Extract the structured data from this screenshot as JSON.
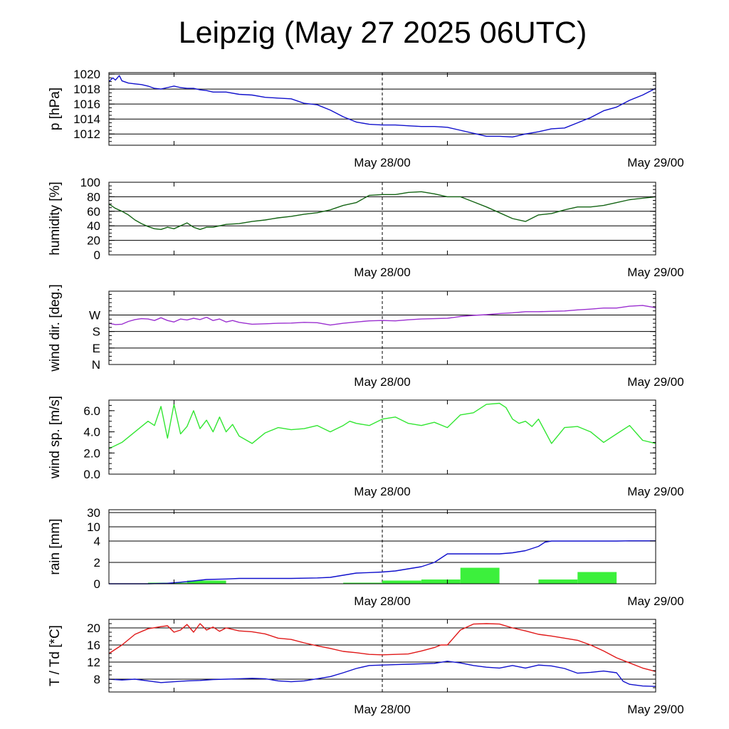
{
  "title": "Leipzig (May 27 2025 06UTC)",
  "colors": {
    "pressure": "#1010cc",
    "humidity": "#146414",
    "wind_dir": "#9b30d0",
    "wind_speed": "#32e632",
    "rain_line": "#1010cc",
    "rain_bars": "#3cf03c",
    "temperature": "#e01818",
    "dewpoint": "#1010cc",
    "frame": "#000000"
  },
  "chart_data": [
    {
      "id": "pressure",
      "type": "line",
      "ylabel": "p [hPa]",
      "ylim": [
        1010.5,
        1020.2
      ],
      "yticks": [
        1012,
        1014,
        1016,
        1018,
        1020
      ],
      "ytick_labels": [
        "1012",
        "1014",
        "1016",
        "1018",
        "1020"
      ],
      "grid": true,
      "xlim": [
        0,
        42
      ],
      "xtick_labels": [
        "May 28/00",
        "May 29/00"
      ],
      "series": [
        {
          "color_key": "pressure",
          "x": [
            0,
            0.3,
            0.5,
            0.8,
            1,
            1.5,
            2,
            2.5,
            3,
            3.5,
            4,
            4.5,
            5,
            5.5,
            6,
            6.5,
            7,
            7.5,
            8,
            9,
            10,
            11,
            12,
            13,
            14,
            15,
            16,
            17,
            18,
            19,
            20,
            21,
            22,
            23,
            24,
            25,
            26,
            27,
            28,
            29,
            30,
            31,
            32,
            33,
            34,
            35,
            36,
            37,
            38,
            39,
            40,
            41,
            42
          ],
          "y": [
            1019,
            1019.5,
            1019.2,
            1019.8,
            1019.1,
            1018.8,
            1018.7,
            1018.6,
            1018.4,
            1018.1,
            1018,
            1018.2,
            1018.4,
            1018.2,
            1018.1,
            1018.1,
            1017.9,
            1017.8,
            1017.6,
            1017.6,
            1017.3,
            1017.2,
            1016.9,
            1016.8,
            1016.7,
            1016.1,
            1015.9,
            1015.2,
            1014.3,
            1013.6,
            1013.3,
            1013.2,
            1013.2,
            1013.1,
            1013,
            1013,
            1012.9,
            1012.5,
            1012.1,
            1011.7,
            1011.7,
            1011.6,
            1012,
            1012.3,
            1012.7,
            1012.8,
            1013.5,
            1014.2,
            1015.1,
            1015.6,
            1016.5,
            1017.2,
            1018.1
          ]
        }
      ]
    },
    {
      "id": "humidity",
      "type": "line",
      "ylabel": "humidity [%]",
      "ylim": [
        0,
        100
      ],
      "yticks": [
        0,
        20,
        40,
        60,
        80,
        100
      ],
      "ytick_labels": [
        "0",
        "20",
        "40",
        "60",
        "80",
        "100"
      ],
      "grid": true,
      "xlim": [
        0,
        42
      ],
      "xtick_labels": [
        "May 28/00",
        "May 29/00"
      ],
      "series": [
        {
          "color_key": "humidity",
          "x": [
            0,
            0.5,
            1,
            1.5,
            2,
            2.5,
            3,
            3.5,
            4,
            4.5,
            5,
            5.5,
            6,
            6.5,
            7,
            7.5,
            8,
            9,
            10,
            11,
            12,
            13,
            14,
            15,
            16,
            17,
            18,
            19,
            20,
            21,
            22,
            23,
            24,
            25,
            26,
            27,
            28,
            29,
            30,
            31,
            32,
            33,
            34,
            35,
            36,
            37,
            38,
            39,
            40,
            41,
            42
          ],
          "y": [
            70,
            64,
            60,
            55,
            48,
            43,
            39,
            36,
            35,
            38,
            36,
            40,
            44,
            38,
            35,
            38,
            38,
            42,
            43,
            46,
            48,
            51,
            53,
            56,
            58,
            62,
            68,
            72,
            82,
            83,
            83,
            86,
            87,
            84,
            80,
            80,
            73,
            66,
            58,
            50,
            46,
            55,
            57,
            62,
            66,
            66,
            68,
            72,
            76,
            78,
            80
          ]
        }
      ]
    },
    {
      "id": "wind_dir",
      "type": "line",
      "ylabel": "wind dir. [deg.]",
      "ylim": [
        0,
        400
      ],
      "yticks": [
        0,
        90,
        180,
        270
      ],
      "ytick_labels": [
        "N",
        "E",
        "S",
        "W"
      ],
      "grid": true,
      "xlim": [
        0,
        42
      ],
      "xtick_labels": [
        "May 28/00",
        "May 29/00"
      ],
      "series": [
        {
          "color_key": "wind_dir",
          "x": [
            0,
            0.5,
            1,
            1.5,
            2,
            2.5,
            3,
            3.5,
            4,
            4.5,
            5,
            5.5,
            6,
            6.5,
            7,
            7.5,
            8,
            8.5,
            9,
            9.5,
            10,
            11,
            12,
            13,
            14,
            15,
            16,
            17,
            18,
            19,
            20,
            21,
            22,
            23,
            24,
            25,
            26,
            27,
            28,
            29,
            30,
            31,
            32,
            33,
            34,
            35,
            36,
            37,
            38,
            39,
            40,
            41,
            42
          ],
          "y": [
            225,
            218,
            220,
            235,
            245,
            250,
            248,
            240,
            255,
            240,
            232,
            248,
            243,
            252,
            245,
            258,
            240,
            248,
            232,
            240,
            230,
            220,
            222,
            225,
            226,
            230,
            228,
            215,
            225,
            232,
            238,
            240,
            238,
            244,
            248,
            250,
            252,
            262,
            268,
            272,
            278,
            282,
            288,
            288,
            290,
            292,
            298,
            302,
            308,
            308,
            318,
            322,
            310
          ]
        }
      ]
    },
    {
      "id": "wind_speed",
      "type": "line",
      "ylabel": "wind sp. [m/s]",
      "ylim": [
        0,
        7
      ],
      "yticks": [
        0,
        2,
        4,
        6
      ],
      "ytick_labels": [
        "0.0",
        "2.0",
        "4.0",
        "6.0"
      ],
      "grid": false,
      "xlim": [
        0,
        42
      ],
      "xtick_labels": [
        "May 28/00",
        "May 29/00"
      ],
      "series": [
        {
          "color_key": "wind_speed",
          "x": [
            0,
            1,
            2,
            3,
            3.5,
            4,
            4.5,
            5,
            5.5,
            6,
            6.5,
            7,
            7.5,
            8,
            8.5,
            9,
            9.5,
            10,
            11,
            12,
            13,
            14,
            15,
            16,
            17,
            17.5,
            18,
            18.5,
            19,
            20,
            21,
            22,
            23,
            24,
            25,
            26,
            27,
            28,
            29,
            30,
            30.5,
            31,
            31.5,
            32,
            32.5,
            33,
            34,
            35,
            36,
            37,
            38,
            39,
            40,
            41,
            42
          ],
          "y": [
            2.4,
            3,
            4,
            5,
            4.6,
            6.4,
            3.4,
            6.6,
            3.8,
            4.5,
            6,
            4.3,
            5.1,
            4,
            5.4,
            4,
            4.7,
            3.6,
            2.9,
            3.9,
            4.4,
            4.2,
            4.3,
            4.6,
            4.0,
            4.3,
            4.6,
            5.0,
            4.8,
            4.6,
            5.2,
            5.4,
            4.8,
            4.6,
            4.9,
            4.4,
            5.6,
            5.8,
            6.6,
            6.7,
            6.3,
            5.2,
            4.8,
            5.0,
            4.5,
            5.2,
            2.9,
            4.4,
            4.5,
            4.0,
            3.0,
            3.8,
            4.6,
            3.2,
            2.9
          ]
        }
      ]
    },
    {
      "id": "rain",
      "type": "bar+line",
      "ylabel": "rain [mm]",
      "ylim": [
        0,
        30
      ],
      "yticks": [
        0,
        2,
        4,
        10,
        30
      ],
      "ytick_labels": [
        "0",
        "2",
        "4",
        "10",
        "30"
      ],
      "grid": true,
      "xlim": [
        0,
        42
      ],
      "xtick_labels": [
        "May 28/00",
        "May 29/00"
      ],
      "bars": {
        "color_key": "rain_bars",
        "width": 3,
        "x": [
          4.5,
          7.5,
          10.5,
          13.5,
          16.5,
          19.5,
          22.5,
          25.5,
          28.5,
          31.5,
          34.5,
          37.5,
          40.5
        ],
        "values": [
          0.1,
          0.3,
          0,
          0,
          0,
          0.1,
          0.3,
          0.4,
          1.5,
          0,
          0.4,
          1.1,
          0
        ]
      },
      "series": [
        {
          "color_key": "rain_line",
          "x": [
            0,
            3,
            4.5,
            6,
            7.5,
            9,
            10,
            12,
            14,
            16,
            17,
            18,
            19,
            20,
            21,
            22,
            23,
            24,
            25,
            25.5,
            26,
            27,
            28,
            29,
            30,
            31,
            32,
            33,
            33.5,
            34,
            35,
            36,
            37,
            38,
            39,
            40,
            42
          ],
          "y": [
            0,
            0,
            0.05,
            0.2,
            0.4,
            0.45,
            0.5,
            0.5,
            0.5,
            0.55,
            0.6,
            0.8,
            1,
            1.05,
            1.1,
            1.2,
            1.4,
            1.6,
            2,
            2.4,
            2.8,
            2.8,
            2.8,
            2.8,
            2.8,
            2.9,
            3.1,
            3.5,
            3.9,
            4,
            4,
            4,
            4,
            4,
            4,
            4.1,
            4.1
          ]
        }
      ]
    },
    {
      "id": "temperature",
      "type": "line",
      "ylabel": "T / Td [*C]",
      "ylim": [
        5,
        22
      ],
      "yticks": [
        8,
        12,
        16,
        20
      ],
      "ytick_labels": [
        "8",
        "12",
        "16",
        "20"
      ],
      "grid": true,
      "xlim": [
        0,
        42
      ],
      "xtick_labels": [
        "May 28/00",
        "May 29/00"
      ],
      "series": [
        {
          "color_key": "temperature",
          "x": [
            0,
            1,
            2,
            3,
            4,
            4.5,
            5,
            5.5,
            6,
            6.5,
            7,
            7.5,
            8,
            8.5,
            9,
            10,
            11,
            12,
            13,
            14,
            15,
            16,
            17,
            18,
            19,
            20,
            21,
            22,
            23,
            24,
            25,
            25.5,
            26,
            27,
            28,
            29,
            30,
            31,
            32,
            33,
            34,
            35,
            36,
            37,
            38,
            39,
            40,
            41,
            42
          ],
          "y": [
            14,
            16,
            18.5,
            19.8,
            20.3,
            20.5,
            19,
            19.5,
            20.8,
            19,
            21,
            19.5,
            20.2,
            19.2,
            20,
            19.3,
            19.1,
            18.6,
            17.6,
            17.3,
            16.5,
            15.8,
            15.2,
            14.5,
            14.2,
            13.8,
            13.7,
            13.8,
            13.9,
            14.6,
            15.4,
            16,
            16,
            19.5,
            20.9,
            21,
            20.9,
            20,
            19.3,
            18.5,
            18.1,
            17.6,
            17.1,
            16,
            14.6,
            13,
            11.8,
            10.6,
            9.8
          ]
        },
        {
          "color_key": "dewpoint",
          "x": [
            0,
            1,
            2,
            3,
            4,
            5,
            6,
            7,
            8,
            9,
            10,
            11,
            12,
            13,
            14,
            15,
            16,
            17,
            18,
            19,
            20,
            21,
            22,
            23,
            24,
            25,
            26,
            27,
            28,
            29,
            30,
            31,
            32,
            33,
            34,
            35,
            36,
            37,
            38,
            39,
            39.5,
            40,
            41,
            42
          ],
          "y": [
            8,
            7.8,
            8,
            7.6,
            7.2,
            7.4,
            7.6,
            7.7,
            7.9,
            8,
            8.1,
            8.2,
            8.1,
            7.6,
            7.4,
            7.6,
            8.1,
            8.6,
            9.5,
            10.5,
            11.2,
            11.3,
            11.4,
            11.5,
            11.6,
            11.7,
            12.2,
            11.8,
            11.2,
            10.8,
            10.6,
            11.2,
            10.6,
            11.3,
            11.1,
            10.5,
            9.4,
            9.6,
            9.9,
            9.5,
            7.5,
            6.8,
            6.4,
            6.3
          ]
        }
      ]
    }
  ]
}
